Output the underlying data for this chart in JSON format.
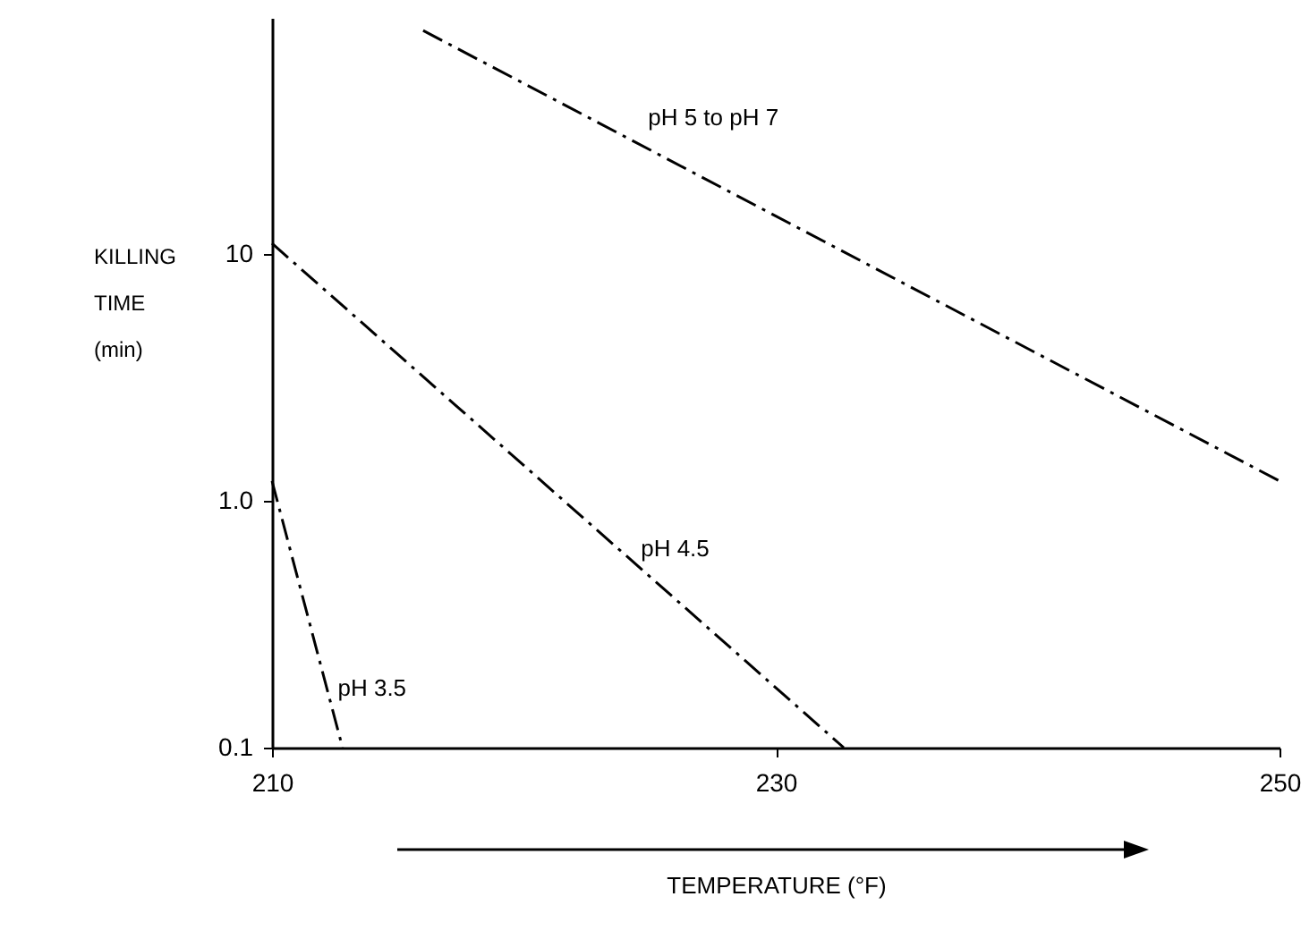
{
  "chart_data": {
    "type": "line",
    "xlabel": "TEMPERATURE (°F)",
    "ylabel": "KILLING TIME (min)",
    "xlim": [
      210,
      250
    ],
    "xticks": [
      210,
      230,
      250
    ],
    "ylim": [
      0.1,
      90
    ],
    "yticks": [
      {
        "value": 0.1,
        "label": "0.1"
      },
      {
        "value": 1,
        "label": "1.0"
      },
      10
    ],
    "log": true,
    "grid": false,
    "line_style": "dashed",
    "marker": "none",
    "series": [
      {
        "name": "pH 5 to pH 7",
        "color": "#000000",
        "x": [
          216,
          250
        ],
        "values": [
          80,
          1.2
        ]
      },
      {
        "name": "pH 4.5",
        "color": "#000000",
        "x": [
          210,
          232.7
        ],
        "values": [
          11,
          0.1
        ]
      },
      {
        "name": "pH 3.5",
        "color": "#000000",
        "x": [
          210,
          212.8
        ],
        "values": [
          1.2,
          0.1
        ]
      }
    ]
  }
}
